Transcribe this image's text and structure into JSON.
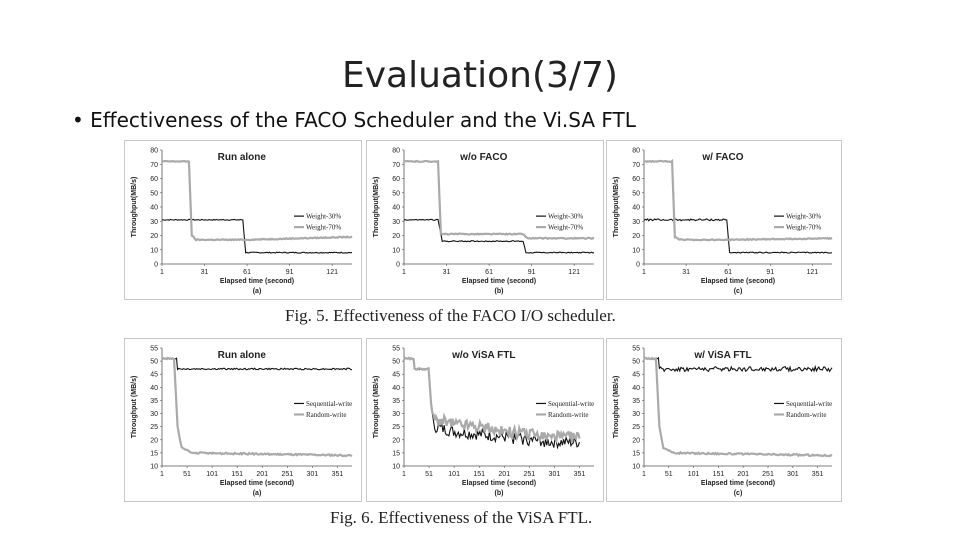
{
  "slide": {
    "title": "Evaluation(3/7)",
    "bullet": "• Effectiveness of the FACO Scheduler and the Vi.SA FTL"
  },
  "figures": [
    {
      "caption": "Fig. 5. Effectiveness of the FACO I/O scheduler."
    },
    {
      "caption": "Fig. 6. Effectiveness of the ViSA FTL."
    }
  ],
  "colors": {
    "dark_series": "#111111",
    "light_series": "#aaaaaa",
    "axis": "#555555"
  },
  "chart_data": [
    {
      "type": "line",
      "panel_label": "(a)",
      "title": "Run alone",
      "xlabel": "Elapsed time (second)",
      "ylabel": "Throughput(MB/s)",
      "xlim": [
        1,
        135
      ],
      "ylim": [
        0,
        80
      ],
      "xticks": [
        1,
        31,
        61,
        91,
        121
      ],
      "yticks": [
        0,
        10,
        20,
        30,
        40,
        50,
        60,
        70,
        80
      ],
      "legend_position": "right",
      "series": [
        {
          "name": "Weight-30%",
          "color": "dark",
          "x": [
            1,
            58,
            60,
            135
          ],
          "y": [
            31,
            31,
            8,
            8
          ]
        },
        {
          "name": "Weight-70%",
          "color": "light",
          "x": [
            1,
            20,
            22,
            25,
            60,
            135
          ],
          "y": [
            72,
            72,
            20,
            17,
            17,
            19
          ]
        }
      ]
    },
    {
      "type": "line",
      "panel_label": "(b)",
      "title": "w/o FACO",
      "xlabel": "Elapsed time (second)",
      "ylabel": "Throughput(MB/s)",
      "xlim": [
        1,
        135
      ],
      "ylim": [
        0,
        80
      ],
      "xticks": [
        1,
        31,
        61,
        91,
        121
      ],
      "yticks": [
        0,
        10,
        20,
        30,
        40,
        50,
        60,
        70,
        80
      ],
      "legend_position": "right",
      "series": [
        {
          "name": "Weight-30%",
          "color": "dark",
          "x": [
            1,
            25,
            28,
            85,
            87,
            135
          ],
          "y": [
            31,
            31,
            16,
            16,
            8,
            8
          ]
        },
        {
          "name": "Weight-70%",
          "color": "light",
          "x": [
            1,
            25,
            27,
            85,
            88,
            135
          ],
          "y": [
            72,
            72,
            21,
            21,
            18,
            18
          ]
        }
      ]
    },
    {
      "type": "line",
      "panel_label": "(c)",
      "title": "w/ FACO",
      "xlabel": "Elapsed time (second)",
      "ylabel": "Throughput(MB/s)",
      "xlim": [
        1,
        135
      ],
      "ylim": [
        0,
        80
      ],
      "xticks": [
        1,
        31,
        61,
        91,
        121
      ],
      "yticks": [
        0,
        10,
        20,
        30,
        40,
        50,
        60,
        70,
        80
      ],
      "legend_position": "right",
      "series": [
        {
          "name": "Weight-30%",
          "color": "dark",
          "x": [
            1,
            60,
            62,
            135
          ],
          "y": [
            31,
            31,
            8,
            8
          ]
        },
        {
          "name": "Weight-70%",
          "color": "light",
          "x": [
            1,
            21,
            23,
            26,
            60,
            135
          ],
          "y": [
            72,
            72,
            19,
            17,
            17,
            18
          ]
        }
      ]
    },
    {
      "type": "line",
      "panel_label": "(a)",
      "title": "Run alone",
      "xlabel": "Elapsed time (second)",
      "ylabel": "Throughput (MB/s)",
      "xlim": [
        1,
        380
      ],
      "ylim": [
        10,
        55
      ],
      "xticks": [
        1,
        51,
        101,
        151,
        201,
        251,
        301,
        351
      ],
      "yticks": [
        10,
        15,
        20,
        25,
        30,
        35,
        40,
        45,
        50,
        55
      ],
      "legend_position": "right",
      "series": [
        {
          "name": "Sequential-write",
          "color": "dark",
          "x": [
            1,
            30,
            32,
            380
          ],
          "y": [
            51,
            51,
            47,
            47
          ]
        },
        {
          "name": "Random-write",
          "color": "light",
          "x": [
            1,
            25,
            28,
            32,
            40,
            60,
            380
          ],
          "y": [
            51,
            51,
            40,
            25,
            17,
            15,
            14
          ]
        }
      ]
    },
    {
      "type": "line",
      "panel_label": "(b)",
      "title": "w/o ViSA FTL",
      "xlabel": "Elapsed time (second)",
      "ylabel": "Throughput (MB/s)",
      "xlim": [
        1,
        380
      ],
      "ylim": [
        10,
        55
      ],
      "xticks": [
        1,
        51,
        101,
        151,
        201,
        251,
        301,
        351
      ],
      "yticks": [
        10,
        15,
        20,
        25,
        30,
        35,
        40,
        45,
        50,
        55
      ],
      "legend_position": "right",
      "series": [
        {
          "name": "Sequential-write",
          "color": "dark",
          "x": [
            1,
            20,
            22,
            50,
            55,
            60,
            100,
            150,
            200,
            250,
            300,
            351
          ],
          "y": [
            51,
            51,
            47,
            47,
            33,
            25,
            23,
            22,
            21,
            20,
            19,
            19
          ]
        },
        {
          "name": "Random-write",
          "color": "light",
          "x": [
            1,
            20,
            22,
            50,
            55,
            60,
            100,
            150,
            200,
            250,
            300,
            351
          ],
          "y": [
            51,
            51,
            47,
            47,
            34,
            28,
            26,
            25,
            23,
            22,
            21,
            21
          ]
        }
      ]
    },
    {
      "type": "line",
      "panel_label": "(c)",
      "title": "w/ ViSA FTL",
      "xlabel": "Elapsed time (second)",
      "ylabel": "Throughput (MB/s)",
      "xlim": [
        1,
        380
      ],
      "ylim": [
        10,
        55
      ],
      "xticks": [
        1,
        51,
        101,
        151,
        201,
        251,
        301,
        351
      ],
      "yticks": [
        10,
        15,
        20,
        25,
        30,
        35,
        40,
        45,
        50,
        55
      ],
      "legend_position": "right",
      "series": [
        {
          "name": "Sequential-write",
          "color": "dark",
          "x": [
            1,
            30,
            32,
            380
          ],
          "y": [
            51,
            51,
            47,
            47
          ]
        },
        {
          "name": "Random-write",
          "color": "light",
          "x": [
            1,
            25,
            28,
            32,
            40,
            60,
            380
          ],
          "y": [
            51,
            51,
            40,
            25,
            17,
            15,
            14
          ]
        }
      ]
    }
  ]
}
